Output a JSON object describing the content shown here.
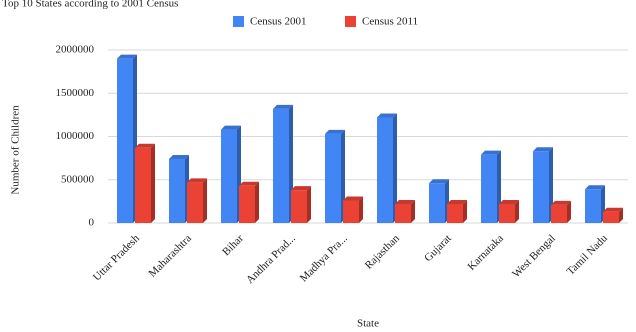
{
  "chart_data": {
    "type": "bar",
    "title": "Top 10 States according to 2001 Census",
    "categories": [
      "Uttar Pradesh",
      "Maharashtra",
      "Bihar",
      "Andhra Prad...",
      "Madhya Pra...",
      "Rajasthan",
      "Gujarat",
      "Karnataka",
      "West Bengal",
      "Tamil Nadu"
    ],
    "series": [
      {
        "name": "Census 2001",
        "color": "#4285f4",
        "values": [
          1900000,
          740000,
          1080000,
          1320000,
          1030000,
          1220000,
          460000,
          790000,
          830000,
          390000
        ]
      },
      {
        "name": "Census 2011",
        "color": "#ea4335",
        "values": [
          870000,
          470000,
          430000,
          380000,
          260000,
          220000,
          220000,
          220000,
          210000,
          130000
        ]
      }
    ],
    "xlabel": "State",
    "ylabel": "Number of Children",
    "ylim": [
      0,
      2000000
    ],
    "yticks": [
      0,
      500000,
      1000000,
      1500000,
      2000000
    ],
    "grid": true,
    "legend": "top"
  }
}
